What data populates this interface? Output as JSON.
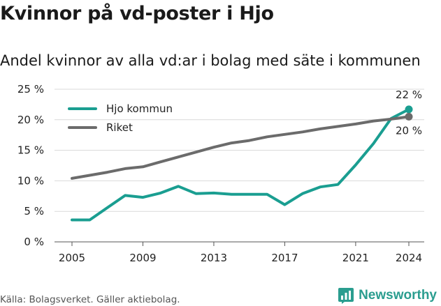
{
  "header": {
    "title": "Kvinnor på vd-poster i Hjo",
    "subtitle": "Andel kvinnor av alla vd:ar i bolag med säte i kommunen"
  },
  "footer": {
    "source": "Källa: Bolagsverket. Gäller aktiebolag.",
    "brand": "Newsworthy"
  },
  "colors": {
    "hjo": "#1a9e91",
    "riket": "#6b6b6b",
    "grid": "#d9d9d9"
  },
  "chart_data": {
    "type": "line",
    "y_ticks": [
      0,
      5,
      10,
      15,
      20,
      25
    ],
    "y_tick_suffix": " %",
    "x_ticks": [
      2005,
      2009,
      2013,
      2017,
      2021,
      2024
    ],
    "xlim": [
      2005,
      2024
    ],
    "ylim": [
      0,
      25
    ],
    "grid": "horizontal",
    "legend_position": "top-left",
    "series": [
      {
        "name": "Hjo kommun",
        "color": "#1a9e91",
        "end_label": "22 %",
        "x": [
          2005,
          2006,
          2007,
          2008,
          2009,
          2010,
          2011,
          2012,
          2013,
          2014,
          2015,
          2016,
          2017,
          2018,
          2019,
          2020,
          2021,
          2022,
          2023,
          2024
        ],
        "y": [
          3.6,
          3.6,
          5.6,
          7.6,
          7.3,
          8.0,
          9.1,
          7.9,
          8.0,
          7.8,
          7.8,
          7.8,
          6.1,
          7.9,
          9.0,
          9.4,
          12.6,
          16.1,
          20.2,
          21.7
        ]
      },
      {
        "name": "Riket",
        "color": "#6b6b6b",
        "end_label": "20 %",
        "x": [
          2005,
          2006,
          2007,
          2008,
          2009,
          2010,
          2011,
          2012,
          2013,
          2014,
          2015,
          2016,
          2017,
          2018,
          2019,
          2020,
          2021,
          2022,
          2023,
          2024
        ],
        "y": [
          10.4,
          10.9,
          11.4,
          12.0,
          12.3,
          13.1,
          13.9,
          14.7,
          15.5,
          16.2,
          16.6,
          17.2,
          17.6,
          18.0,
          18.5,
          18.9,
          19.3,
          19.8,
          20.1,
          20.5
        ]
      }
    ]
  }
}
